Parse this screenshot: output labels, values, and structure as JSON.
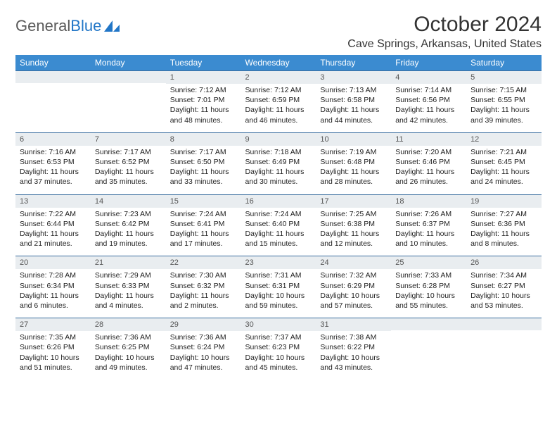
{
  "logo": {
    "text_general": "General",
    "text_blue": "Blue"
  },
  "header": {
    "month_title": "October 2024",
    "location": "Cave Springs, Arkansas, United States"
  },
  "colors": {
    "header_bg": "#3b8bd0",
    "header_text": "#ffffff",
    "daynum_bg": "#e9edf0",
    "row_border": "#3b6fa0",
    "body_text": "#222222",
    "logo_gray": "#5a5a5a",
    "logo_blue": "#2176c7"
  },
  "day_headers": [
    "Sunday",
    "Monday",
    "Tuesday",
    "Wednesday",
    "Thursday",
    "Friday",
    "Saturday"
  ],
  "weeks": [
    [
      {
        "n": "",
        "sunrise": "",
        "sunset": "",
        "daylight": ""
      },
      {
        "n": "",
        "sunrise": "",
        "sunset": "",
        "daylight": ""
      },
      {
        "n": "1",
        "sunrise": "Sunrise: 7:12 AM",
        "sunset": "Sunset: 7:01 PM",
        "daylight": "Daylight: 11 hours and 48 minutes."
      },
      {
        "n": "2",
        "sunrise": "Sunrise: 7:12 AM",
        "sunset": "Sunset: 6:59 PM",
        "daylight": "Daylight: 11 hours and 46 minutes."
      },
      {
        "n": "3",
        "sunrise": "Sunrise: 7:13 AM",
        "sunset": "Sunset: 6:58 PM",
        "daylight": "Daylight: 11 hours and 44 minutes."
      },
      {
        "n": "4",
        "sunrise": "Sunrise: 7:14 AM",
        "sunset": "Sunset: 6:56 PM",
        "daylight": "Daylight: 11 hours and 42 minutes."
      },
      {
        "n": "5",
        "sunrise": "Sunrise: 7:15 AM",
        "sunset": "Sunset: 6:55 PM",
        "daylight": "Daylight: 11 hours and 39 minutes."
      }
    ],
    [
      {
        "n": "6",
        "sunrise": "Sunrise: 7:16 AM",
        "sunset": "Sunset: 6:53 PM",
        "daylight": "Daylight: 11 hours and 37 minutes."
      },
      {
        "n": "7",
        "sunrise": "Sunrise: 7:17 AM",
        "sunset": "Sunset: 6:52 PM",
        "daylight": "Daylight: 11 hours and 35 minutes."
      },
      {
        "n": "8",
        "sunrise": "Sunrise: 7:17 AM",
        "sunset": "Sunset: 6:50 PM",
        "daylight": "Daylight: 11 hours and 33 minutes."
      },
      {
        "n": "9",
        "sunrise": "Sunrise: 7:18 AM",
        "sunset": "Sunset: 6:49 PM",
        "daylight": "Daylight: 11 hours and 30 minutes."
      },
      {
        "n": "10",
        "sunrise": "Sunrise: 7:19 AM",
        "sunset": "Sunset: 6:48 PM",
        "daylight": "Daylight: 11 hours and 28 minutes."
      },
      {
        "n": "11",
        "sunrise": "Sunrise: 7:20 AM",
        "sunset": "Sunset: 6:46 PM",
        "daylight": "Daylight: 11 hours and 26 minutes."
      },
      {
        "n": "12",
        "sunrise": "Sunrise: 7:21 AM",
        "sunset": "Sunset: 6:45 PM",
        "daylight": "Daylight: 11 hours and 24 minutes."
      }
    ],
    [
      {
        "n": "13",
        "sunrise": "Sunrise: 7:22 AM",
        "sunset": "Sunset: 6:44 PM",
        "daylight": "Daylight: 11 hours and 21 minutes."
      },
      {
        "n": "14",
        "sunrise": "Sunrise: 7:23 AM",
        "sunset": "Sunset: 6:42 PM",
        "daylight": "Daylight: 11 hours and 19 minutes."
      },
      {
        "n": "15",
        "sunrise": "Sunrise: 7:24 AM",
        "sunset": "Sunset: 6:41 PM",
        "daylight": "Daylight: 11 hours and 17 minutes."
      },
      {
        "n": "16",
        "sunrise": "Sunrise: 7:24 AM",
        "sunset": "Sunset: 6:40 PM",
        "daylight": "Daylight: 11 hours and 15 minutes."
      },
      {
        "n": "17",
        "sunrise": "Sunrise: 7:25 AM",
        "sunset": "Sunset: 6:38 PM",
        "daylight": "Daylight: 11 hours and 12 minutes."
      },
      {
        "n": "18",
        "sunrise": "Sunrise: 7:26 AM",
        "sunset": "Sunset: 6:37 PM",
        "daylight": "Daylight: 11 hours and 10 minutes."
      },
      {
        "n": "19",
        "sunrise": "Sunrise: 7:27 AM",
        "sunset": "Sunset: 6:36 PM",
        "daylight": "Daylight: 11 hours and 8 minutes."
      }
    ],
    [
      {
        "n": "20",
        "sunrise": "Sunrise: 7:28 AM",
        "sunset": "Sunset: 6:34 PM",
        "daylight": "Daylight: 11 hours and 6 minutes."
      },
      {
        "n": "21",
        "sunrise": "Sunrise: 7:29 AM",
        "sunset": "Sunset: 6:33 PM",
        "daylight": "Daylight: 11 hours and 4 minutes."
      },
      {
        "n": "22",
        "sunrise": "Sunrise: 7:30 AM",
        "sunset": "Sunset: 6:32 PM",
        "daylight": "Daylight: 11 hours and 2 minutes."
      },
      {
        "n": "23",
        "sunrise": "Sunrise: 7:31 AM",
        "sunset": "Sunset: 6:31 PM",
        "daylight": "Daylight: 10 hours and 59 minutes."
      },
      {
        "n": "24",
        "sunrise": "Sunrise: 7:32 AM",
        "sunset": "Sunset: 6:29 PM",
        "daylight": "Daylight: 10 hours and 57 minutes."
      },
      {
        "n": "25",
        "sunrise": "Sunrise: 7:33 AM",
        "sunset": "Sunset: 6:28 PM",
        "daylight": "Daylight: 10 hours and 55 minutes."
      },
      {
        "n": "26",
        "sunrise": "Sunrise: 7:34 AM",
        "sunset": "Sunset: 6:27 PM",
        "daylight": "Daylight: 10 hours and 53 minutes."
      }
    ],
    [
      {
        "n": "27",
        "sunrise": "Sunrise: 7:35 AM",
        "sunset": "Sunset: 6:26 PM",
        "daylight": "Daylight: 10 hours and 51 minutes."
      },
      {
        "n": "28",
        "sunrise": "Sunrise: 7:36 AM",
        "sunset": "Sunset: 6:25 PM",
        "daylight": "Daylight: 10 hours and 49 minutes."
      },
      {
        "n": "29",
        "sunrise": "Sunrise: 7:36 AM",
        "sunset": "Sunset: 6:24 PM",
        "daylight": "Daylight: 10 hours and 47 minutes."
      },
      {
        "n": "30",
        "sunrise": "Sunrise: 7:37 AM",
        "sunset": "Sunset: 6:23 PM",
        "daylight": "Daylight: 10 hours and 45 minutes."
      },
      {
        "n": "31",
        "sunrise": "Sunrise: 7:38 AM",
        "sunset": "Sunset: 6:22 PM",
        "daylight": "Daylight: 10 hours and 43 minutes."
      },
      {
        "n": "",
        "sunrise": "",
        "sunset": "",
        "daylight": ""
      },
      {
        "n": "",
        "sunrise": "",
        "sunset": "",
        "daylight": ""
      }
    ]
  ]
}
